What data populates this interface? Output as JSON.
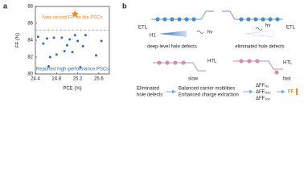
{
  "chart_data": {
    "type": "scatter",
    "panel_label": "a",
    "xlabel": "PCE (%)",
    "ylabel": "FF (%)",
    "xlim": [
      24.4,
      25.8
    ],
    "ylim": [
      80,
      88
    ],
    "xticks": [
      24.4,
      24.8,
      25.2,
      25.6
    ],
    "yticks": [
      80,
      82,
      84,
      86,
      88
    ],
    "series": [
      {
        "name": "Reported high-performance PSCs",
        "color": "#2f6db5",
        "marker": "circle",
        "x": [
          24.45,
          24.55,
          24.62,
          24.65,
          24.68,
          24.75,
          24.8,
          24.9,
          24.95,
          25.0,
          25.05,
          25.1,
          25.15,
          25.2,
          25.25,
          25.3,
          25.35,
          25.55,
          25.65
        ],
        "values": [
          84.4,
          83.6,
          84.2,
          80.9,
          82.0,
          84.3,
          82.3,
          84.3,
          82.7,
          83.4,
          84.1,
          82.6,
          84.6,
          83.9,
          80.8,
          83.3,
          84.6,
          82.2,
          83.9
        ]
      },
      {
        "name": "New record FF for the PSCs",
        "color": "#f08a24",
        "marker": "star",
        "x": [
          25.15
        ],
        "values": [
          87.1
        ]
      }
    ],
    "reference_line": {
      "value": 85.2,
      "color": "#f08a24",
      "style": "dashed"
    }
  },
  "diagram": {
    "panel_label": "b",
    "top_left": {
      "layer": "ETL",
      "light": "hv",
      "defect": "H1",
      "caption": "deep-level hole defects"
    },
    "top_right": {
      "layer": "ETL",
      "light": "hv",
      "caption": "eliminated hole defects"
    },
    "mid_left": {
      "layer": "HTL",
      "speed": "slow"
    },
    "mid_right": {
      "layer": "HTL",
      "speed": "fast"
    },
    "flow": {
      "step1": [
        "Eliminated",
        "hole defects"
      ],
      "step2": [
        "Balanced carrier mobilities",
        "Enhanced charge extraction"
      ],
      "delta_labels": [
        {
          "main": "ΔFF",
          "sub": "Rs"
        },
        {
          "main": "ΔFF",
          "sub": "Rsh"
        },
        {
          "main": "ΔFF",
          "sub": "J02"
        }
      ],
      "result": "FF"
    }
  }
}
